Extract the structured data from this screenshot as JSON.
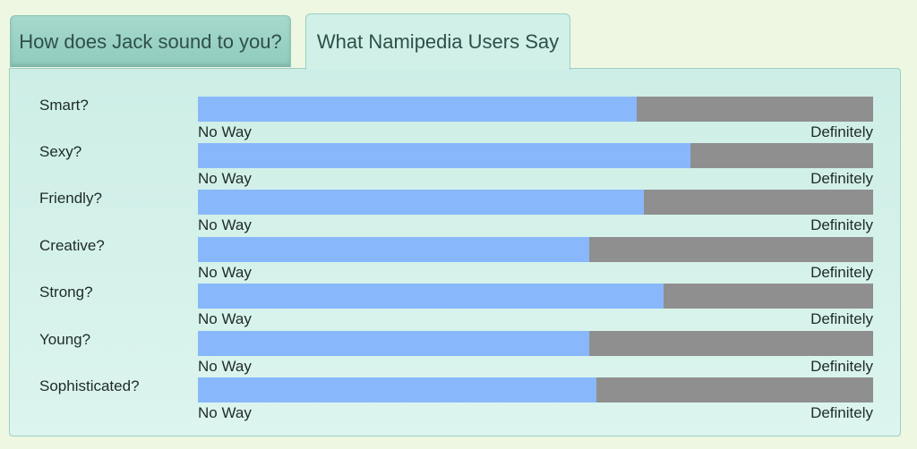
{
  "tabs": [
    {
      "label": "How does Jack sound to you?",
      "active": false
    },
    {
      "label": "What Namipedia Users Say",
      "active": true
    }
  ],
  "scale": {
    "min_label": "No Way",
    "max_label": "Definitely"
  },
  "colors": {
    "fill": "#88b8fb",
    "track": "#8f8f8f",
    "panel": "#cdeee6",
    "page": "#eef7e2"
  },
  "traits": [
    {
      "label": "Smart?",
      "value": 0.65
    },
    {
      "label": "Sexy?",
      "value": 0.73
    },
    {
      "label": "Friendly?",
      "value": 0.66
    },
    {
      "label": "Creative?",
      "value": 0.58
    },
    {
      "label": "Strong?",
      "value": 0.69
    },
    {
      "label": "Young?",
      "value": 0.58
    },
    {
      "label": "Sophisticated?",
      "value": 0.59
    }
  ]
}
